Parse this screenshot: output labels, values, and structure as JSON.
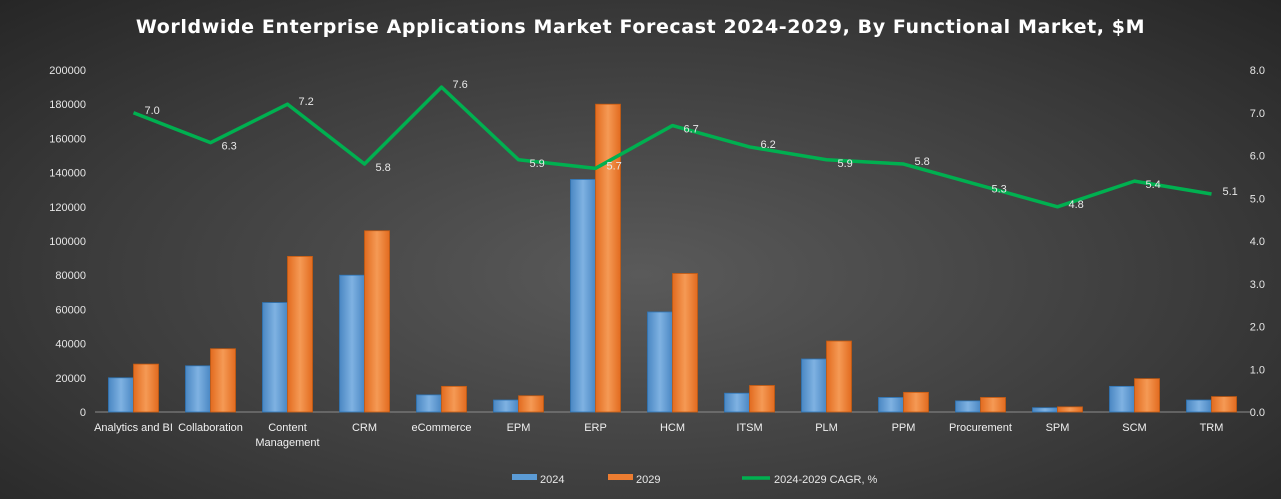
{
  "chart_data": {
    "type": "bar",
    "title": "Worldwide Enterprise Applications Market Forecast 2024-2029, By Functional Market, $M",
    "categories": [
      "Analytics and BI",
      "Collaboration",
      "Content Management",
      "CRM",
      "eCommerce",
      "EPM",
      "ERP",
      "HCM",
      "ITSM",
      "PLM",
      "PPM",
      "Procurement",
      "SPM",
      "SCM",
      "TRM"
    ],
    "series": [
      {
        "name": "2024",
        "type": "bar",
        "axis": "left",
        "color": "#5b9bd5",
        "values": [
          20000,
          27000,
          64000,
          80000,
          10000,
          7000,
          136000,
          58500,
          11000,
          31000,
          8500,
          6500,
          2500,
          15000,
          7000
        ]
      },
      {
        "name": "2029",
        "type": "bar",
        "axis": "left",
        "color": "#ed7d31",
        "values": [
          28000,
          37000,
          91000,
          106000,
          15000,
          9500,
          180000,
          81000,
          15500,
          41500,
          11500,
          8500,
          3000,
          19500,
          9000
        ]
      },
      {
        "name": "2024-2029 CAGR, %",
        "type": "line",
        "axis": "right",
        "color": "#00b050",
        "values": [
          7.0,
          6.3,
          7.2,
          5.8,
          7.6,
          5.9,
          5.7,
          6.7,
          6.2,
          5.9,
          5.8,
          5.3,
          4.8,
          5.4,
          5.1
        ],
        "labels": [
          "7.0",
          "6.3",
          "7.2",
          "5.8",
          "7.6",
          "5.9",
          "5.7",
          "6.7",
          "6.2",
          "5.9",
          "5.8",
          "5.3",
          "4.8",
          "5.4",
          "5.1"
        ]
      }
    ],
    "y_left": {
      "min": 0,
      "max": 200000,
      "ticks": [
        "0",
        "20000",
        "40000",
        "60000",
        "80000",
        "100000",
        "120000",
        "140000",
        "160000",
        "180000",
        "200000"
      ]
    },
    "y_right": {
      "min": 0,
      "max": 8,
      "ticks": [
        "0.0",
        "1.0",
        "2.0",
        "3.0",
        "4.0",
        "5.0",
        "6.0",
        "7.0",
        "8.0"
      ]
    },
    "grid": false,
    "legend_position": "bottom"
  }
}
